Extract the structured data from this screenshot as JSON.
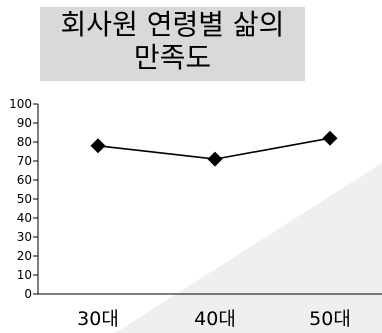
{
  "chart_data": {
    "type": "line",
    "title": "회사원 연령별 삶의\n만족도",
    "categories": [
      "30대",
      "40대",
      "50대"
    ],
    "series": [
      {
        "values": [
          78,
          71,
          82
        ]
      }
    ],
    "y_ticks": [
      "0",
      "10",
      "20",
      "30",
      "40",
      "50",
      "60",
      "70",
      "80",
      "90",
      "100"
    ],
    "ylim": [
      0,
      100
    ],
    "grid": false,
    "marker": "diamond",
    "colors": {
      "line": "#000000",
      "marker": "#000000",
      "title_background": "#d9d9d9",
      "background_wedge": "#efefef"
    }
  }
}
